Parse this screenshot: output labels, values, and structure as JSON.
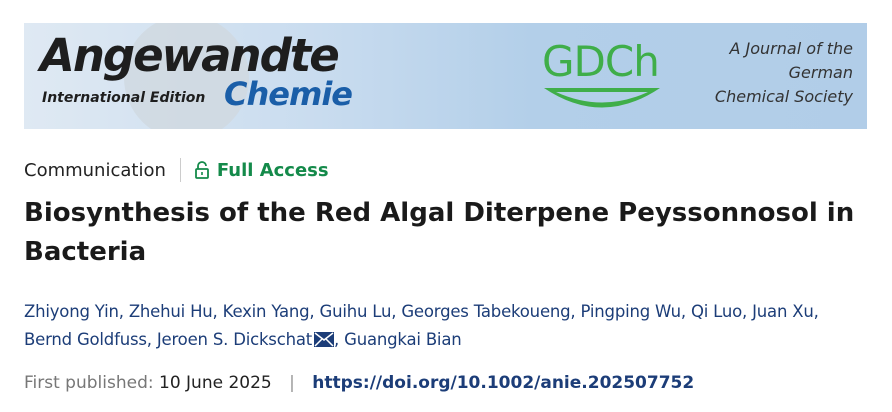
{
  "banner": {
    "journal_name": "Angewandte",
    "edition": "International Edition",
    "journal_sub": "Chemie",
    "society_logo": "GDCh",
    "society_lines": [
      "A Journal of the",
      "German",
      "Chemical Society"
    ]
  },
  "article": {
    "type": "Communication",
    "access": "Full Access",
    "access_icon": "lock-open-icon",
    "access_color": "#148a4a",
    "title": "Biosynthesis of the Red Algal Diterpene Peyssonnosol in Bacteria",
    "authors": [
      "Zhiyong Yin",
      "Zhehui Hu",
      "Kexin Yang",
      "Guihu Lu",
      "Georges Tabekoueng",
      "Pingping Wu",
      "Qi Luo",
      "Juan Xu",
      "Bernd Goldfuss",
      "Jeroen S. Dickschat",
      "Guangkai Bian"
    ],
    "corresponding_icon": "envelope-icon",
    "published_label": "First published:",
    "published_date": "10 June 2025",
    "doi": "https://doi.org/10.1002/anie.202507752"
  }
}
